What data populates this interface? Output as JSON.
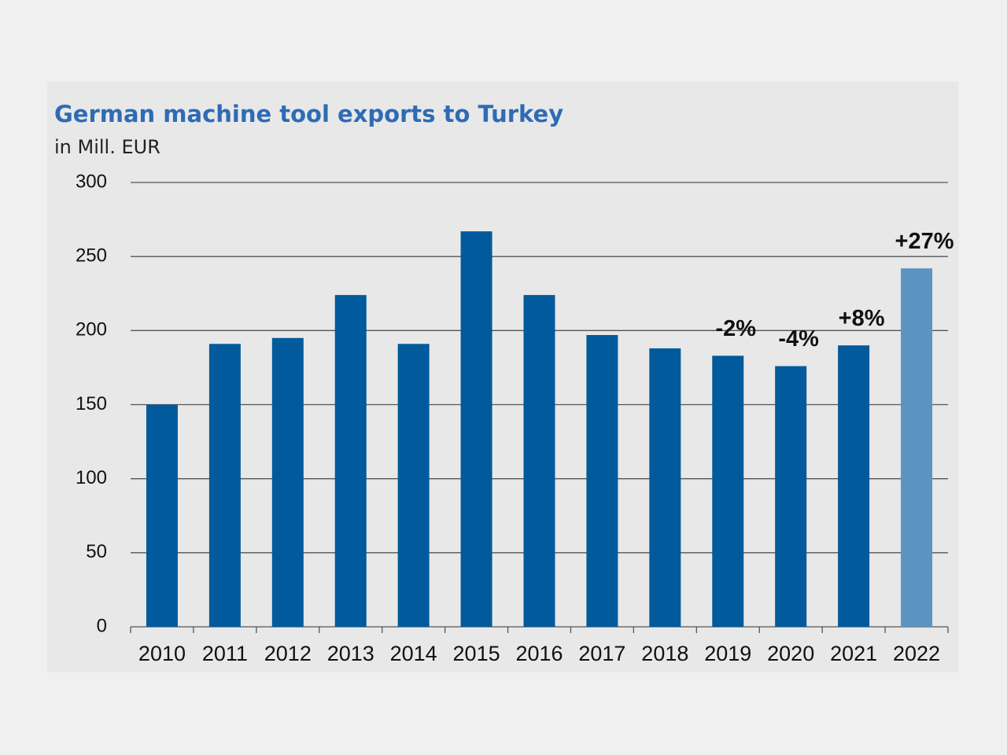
{
  "chart_data": {
    "type": "bar",
    "title": "German machine tool exports to Turkey",
    "subtitle": "in Mill. EUR",
    "categories": [
      "2010",
      "2011",
      "2012",
      "2013",
      "2014",
      "2015",
      "2016",
      "2017",
      "2018",
      "2019",
      "2020",
      "2021",
      "2022"
    ],
    "values": [
      150,
      191,
      195,
      224,
      191,
      267,
      224,
      197,
      188,
      183,
      176,
      190,
      242
    ],
    "colors": [
      "#005a9c",
      "#005a9c",
      "#005a9c",
      "#005a9c",
      "#005a9c",
      "#005a9c",
      "#005a9c",
      "#005a9c",
      "#005a9c",
      "#005a9c",
      "#005a9c",
      "#005a9c",
      "#5b94c0"
    ],
    "annotations": [
      {
        "category": "2019",
        "text": "-2%"
      },
      {
        "category": "2020",
        "text": "-4%"
      },
      {
        "category": "2021",
        "text": "+8%"
      },
      {
        "category": "2022",
        "text": "+27%"
      }
    ],
    "ylim": [
      0,
      300
    ],
    "yticks": [
      0,
      50,
      100,
      150,
      200,
      250,
      300
    ],
    "grid": true
  }
}
